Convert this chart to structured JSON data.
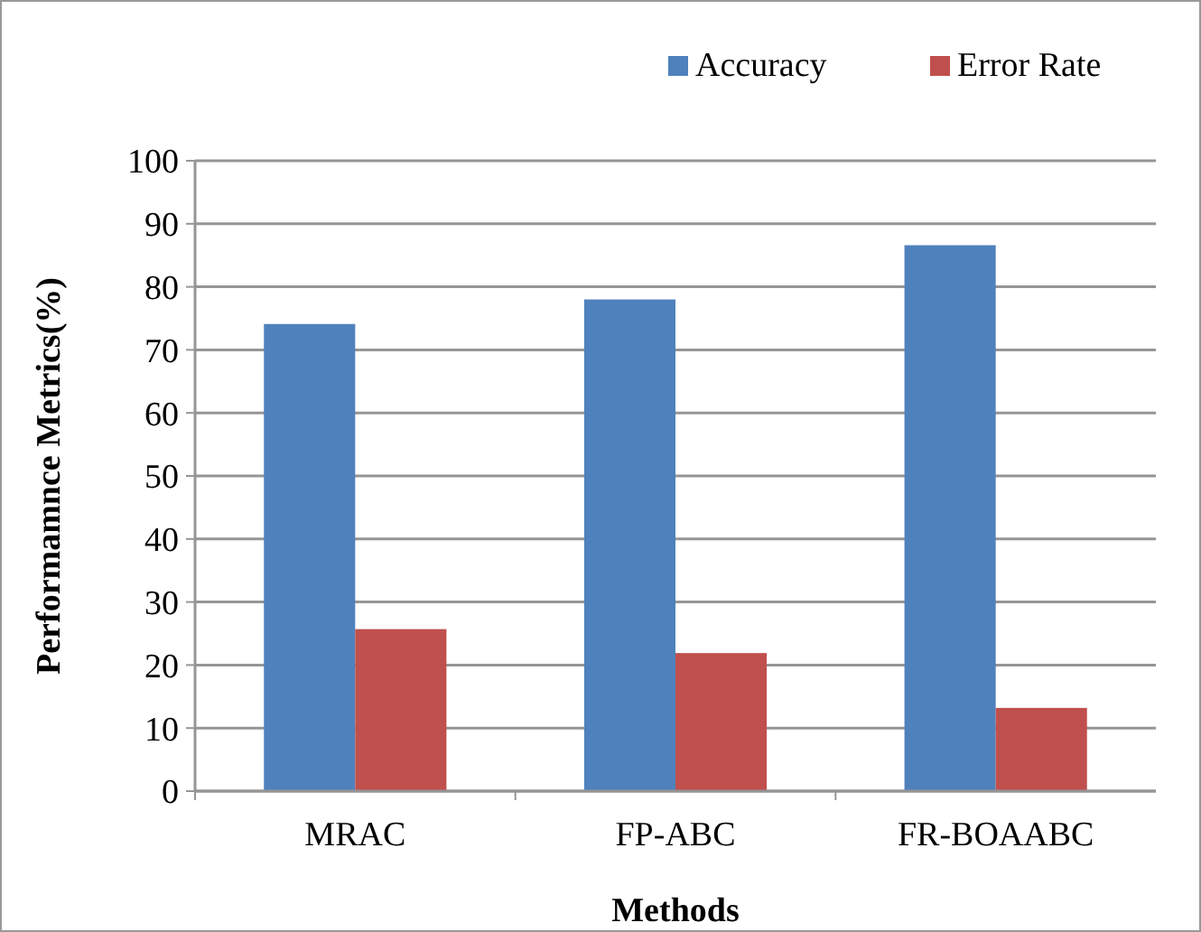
{
  "chart_data": {
    "type": "bar",
    "xlabel": "Methods",
    "ylabel": "Performamnce Metrics(%)",
    "categories": [
      "MRAC",
      "FP-ABC",
      "FR-BOAABC"
    ],
    "series": [
      {
        "name": "Accuracy",
        "color": "#4f81bd",
        "values": [
          74.1,
          78,
          86.6
        ]
      },
      {
        "name": "Error Rate",
        "color": "#c0504d",
        "values": [
          25.7,
          21.9,
          13.2
        ]
      }
    ],
    "ylim": [
      0,
      100
    ],
    "yticks": [
      0,
      10,
      20,
      30,
      40,
      50,
      60,
      70,
      80,
      90,
      100
    ],
    "grid": "y",
    "legend": "top right"
  }
}
